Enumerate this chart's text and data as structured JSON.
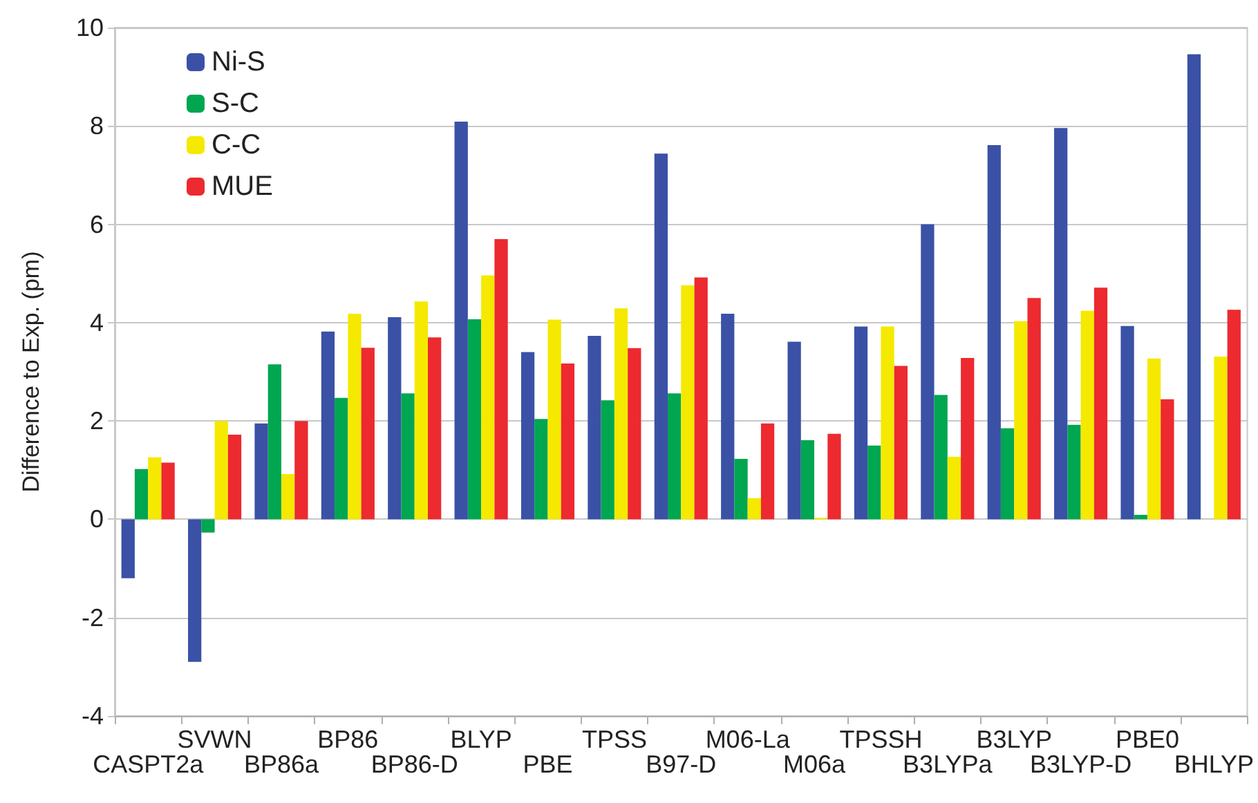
{
  "chart_data": {
    "type": "bar",
    "ylabel": "Difference to Exp. (pm)",
    "categories": [
      "CASPT2a",
      "SVWN",
      "BP86a",
      "BP86",
      "BP86-D",
      "BLYP",
      "PBE",
      "TPSS",
      "B97-D",
      "M06-La",
      "M06a",
      "TPSSH",
      "B3LYPa",
      "B3LYP",
      "B3LYP-D",
      "PBE0",
      "BHLYP"
    ],
    "series": [
      {
        "name": "Ni-S",
        "color": "#3a51a6",
        "values": [
          -1.2,
          -2.9,
          1.95,
          3.82,
          4.11,
          8.09,
          3.4,
          3.73,
          7.44,
          4.18,
          3.61,
          3.92,
          6.0,
          7.61,
          7.96,
          3.93,
          9.46
        ]
      },
      {
        "name": "S-C",
        "color": "#00a650",
        "values": [
          1.02,
          -0.27,
          3.15,
          2.47,
          2.56,
          4.07,
          2.04,
          2.42,
          2.56,
          1.23,
          1.61,
          1.5,
          2.53,
          1.85,
          1.92,
          0.09,
          null
        ]
      },
      {
        "name": "C-C",
        "color": "#f5e900",
        "values": [
          1.26,
          2.0,
          0.92,
          4.18,
          4.43,
          4.96,
          4.06,
          4.29,
          4.76,
          0.43,
          0.03,
          3.92,
          1.27,
          4.03,
          4.24,
          3.27,
          3.31
        ]
      },
      {
        "name": "MUE",
        "color": "#ec2a2f",
        "values": [
          1.15,
          1.72,
          2.0,
          3.49,
          3.7,
          5.7,
          3.17,
          3.48,
          4.92,
          1.95,
          1.74,
          3.12,
          3.28,
          4.5,
          4.71,
          2.44,
          4.26
        ]
      }
    ],
    "ylim": [
      -4,
      10
    ],
    "yticks": [
      -4,
      -2,
      0,
      2,
      4,
      6,
      8,
      10
    ],
    "grid": "y",
    "legend": "top left"
  }
}
